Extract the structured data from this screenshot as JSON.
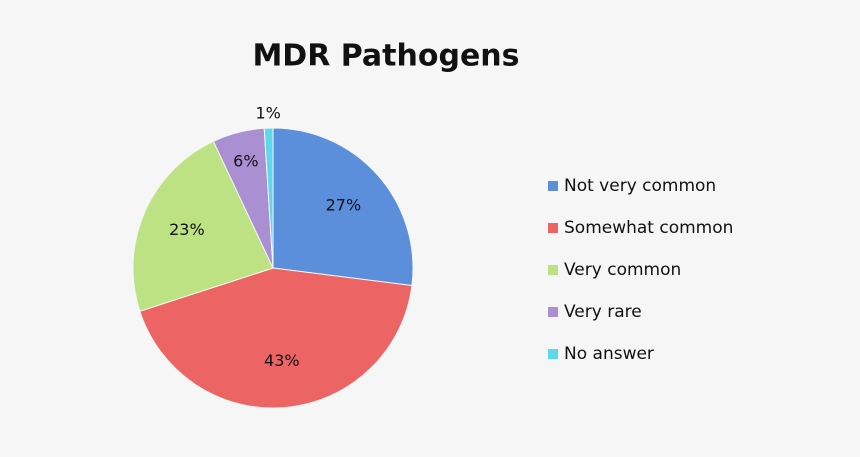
{
  "chart_data": {
    "type": "pie",
    "title": "MDR Pathogens",
    "categories": [
      "Not very common",
      "Somewhat common",
      "Very common",
      "Very rare",
      "No answer"
    ],
    "values": [
      27,
      43,
      23,
      6,
      1
    ],
    "value_labels": [
      "27%",
      "43%",
      "23%",
      "6%",
      "1%"
    ],
    "colors": [
      "#5b8fdc",
      "#ec6464",
      "#bde283",
      "#ab8fd3",
      "#5fd8ee"
    ],
    "legend": "right"
  }
}
